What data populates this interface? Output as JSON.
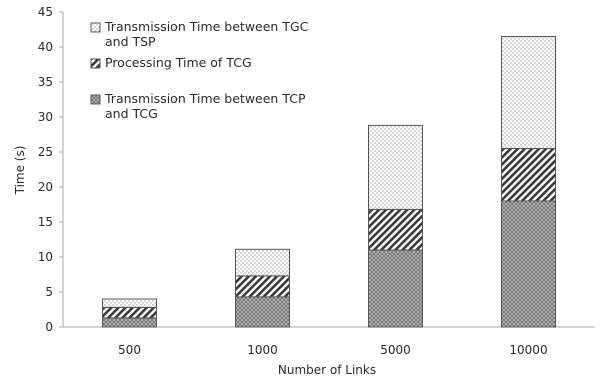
{
  "chart_data": {
    "type": "bar",
    "stacked": true,
    "categories": [
      "500",
      "1000",
      "5000",
      "10000"
    ],
    "series": [
      {
        "name": "Transmission Time between TCP and TCG",
        "values": [
          1.3,
          4.3,
          11.0,
          18.0
        ],
        "pattern": "crosshatch"
      },
      {
        "name": "Processing Time of TCG",
        "values": [
          1.5,
          3.0,
          5.8,
          7.5
        ],
        "pattern": "diagonal"
      },
      {
        "name": "Transmission Time between TGC and TSP",
        "values": [
          1.2,
          3.8,
          12.0,
          16.0
        ],
        "pattern": "dots"
      }
    ],
    "xlabel": "Number of Links",
    "ylabel": "Time (s)",
    "ylim": [
      0,
      45
    ],
    "yticks": [
      0,
      5,
      10,
      15,
      20,
      25,
      30,
      35,
      40,
      45
    ],
    "grid": false,
    "legend_position": "top-left"
  },
  "legend": [
    {
      "line1": "Transmission Time between TGC",
      "line2": "and TSP",
      "pattern": "dots"
    },
    {
      "line1": "Processing Time of TCG",
      "line2": "",
      "pattern": "diagonal"
    },
    {
      "line1": "Transmission Time between TCP",
      "line2": "and TCG",
      "pattern": "crosshatch"
    }
  ]
}
